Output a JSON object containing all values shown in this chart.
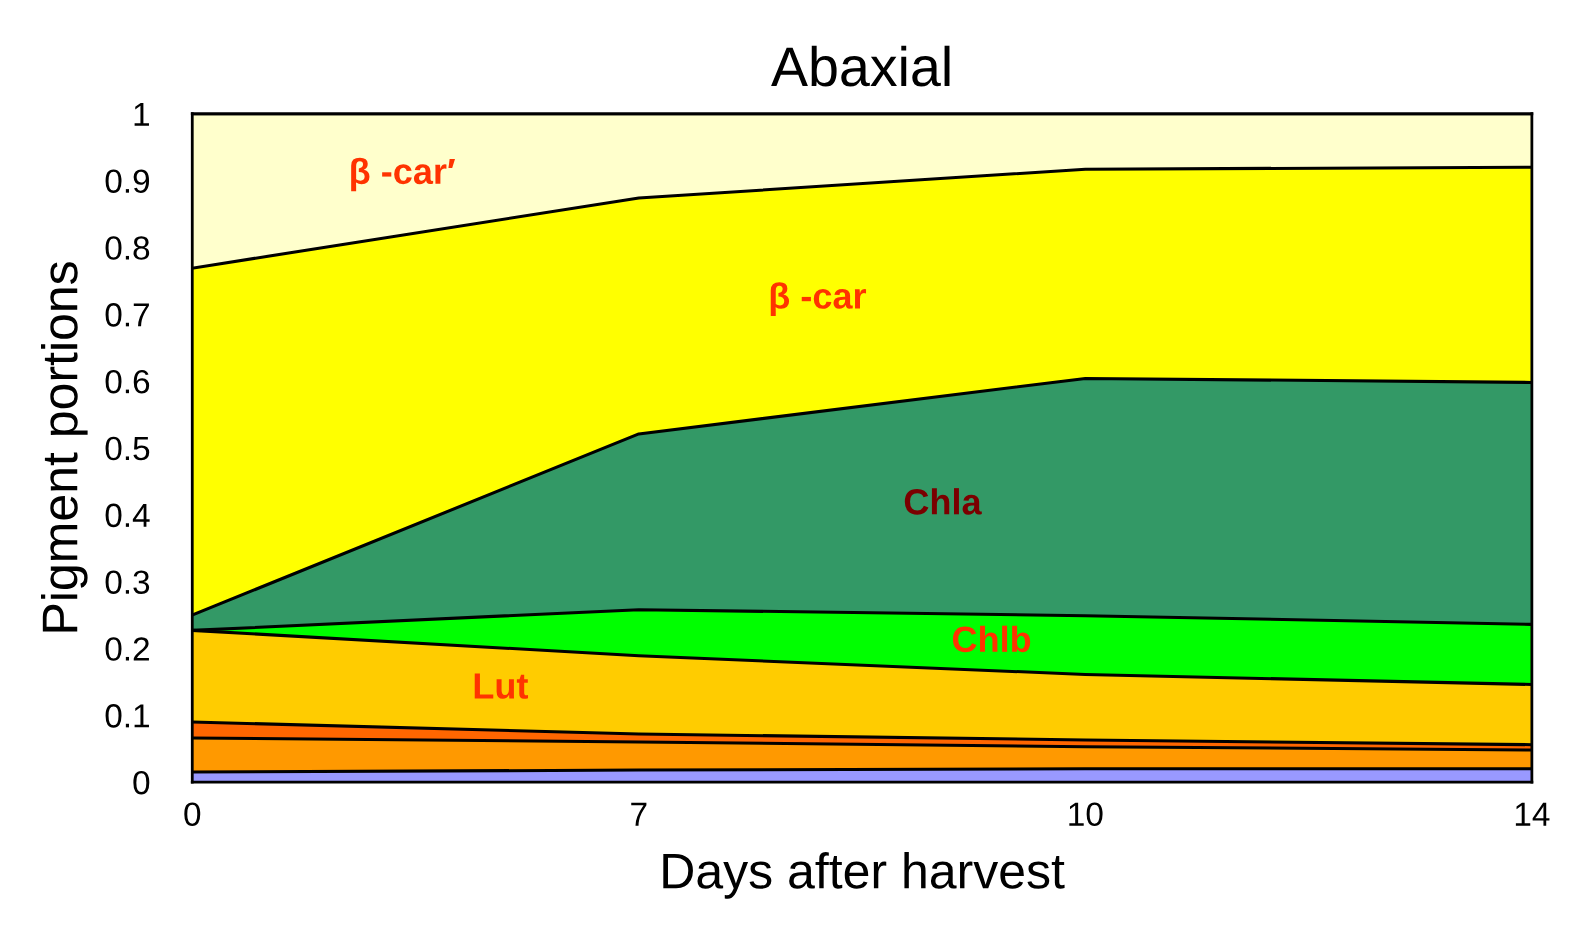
{
  "chart_data": {
    "type": "area",
    "stacked": true,
    "title": "Abaxial",
    "xlabel": "Days after harvest",
    "ylabel": "Pigment portions",
    "categories": [
      "0",
      "7",
      "10",
      "14"
    ],
    "ylim": [
      0,
      1
    ],
    "yticks": [
      0,
      0.1,
      0.2,
      0.3,
      0.4,
      0.5,
      0.6,
      0.7,
      0.8,
      0.9,
      1
    ],
    "grid": false,
    "legend": false,
    "series": [
      {
        "color": "#9999ff",
        "values": [
          0.015,
          0.018,
          0.02,
          0.02
        ]
      },
      {
        "color": "#ff9900",
        "values": [
          0.051,
          0.042,
          0.033,
          0.028
        ]
      },
      {
        "color": "#ff6600",
        "values": [
          0.024,
          0.012,
          0.01,
          0.008
        ]
      },
      {
        "name": "Lut",
        "color": "#ffcc00",
        "values": [
          0.137,
          0.117,
          0.098,
          0.09
        ]
      },
      {
        "name": "Chlb",
        "color": "#00ff00",
        "values": [
          0,
          0.069,
          0.088,
          0.09
        ]
      },
      {
        "name": "Chla",
        "color": "#339966",
        "values": [
          0.023,
          0.263,
          0.355,
          0.362
        ]
      },
      {
        "name": "β -car",
        "color": "#ffff00",
        "values": [
          0.519,
          0.353,
          0.313,
          0.322
        ]
      },
      {
        "name": "β -car′",
        "color": "#ffffcc",
        "values": [
          0.231,
          0.126,
          0.083,
          0.08
        ]
      }
    ]
  }
}
